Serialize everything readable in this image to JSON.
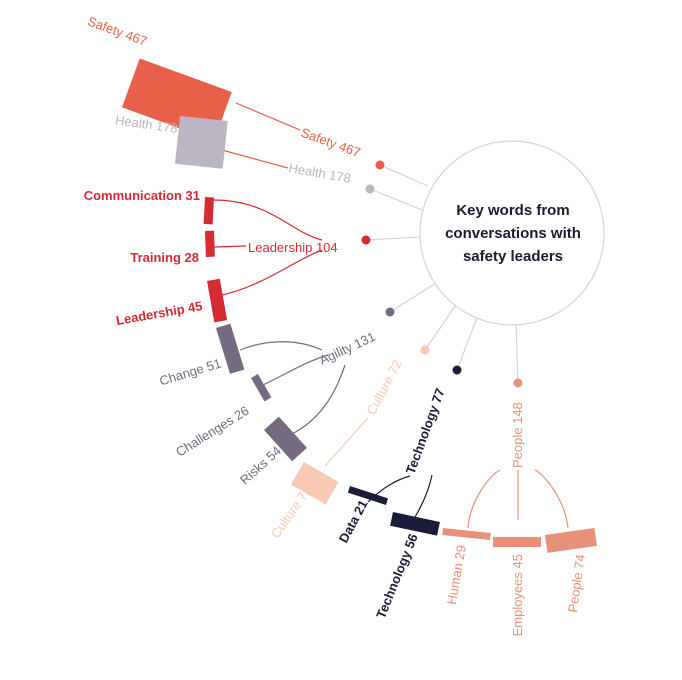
{
  "center": {
    "lines": [
      "Key words from",
      "conversations with",
      "safety leaders"
    ]
  },
  "colors": {
    "safety": "#e8604a",
    "health": "#bcb6c4",
    "leadership": "#d52b32",
    "agility": "#756a80",
    "culture": "#f8c9b5",
    "technology": "#1b1b3a",
    "people": "#e8917a",
    "connector": "#d6d3d8"
  },
  "groups": [
    {
      "key": "safety",
      "label": "Safety 467",
      "color": "#e8604a"
    },
    {
      "key": "health",
      "label": "Health 178",
      "color": "#bcb6c4"
    },
    {
      "key": "leadership",
      "label": "Leadership 104",
      "color": "#d52b32"
    },
    {
      "key": "agility",
      "label": "Agility 131",
      "color": "#756a80"
    },
    {
      "key": "culture",
      "label": "Culture 72",
      "color": "#f8c9b5"
    },
    {
      "key": "technology",
      "label": "Technology 77",
      "color": "#1b1b3a"
    },
    {
      "key": "people",
      "label": "People 148",
      "color": "#e8917a"
    }
  ],
  "words": [
    {
      "group": "safety",
      "word": "Safety",
      "value": "467",
      "label": "Safety 467"
    },
    {
      "group": "health",
      "word": "Health",
      "value": "178",
      "label": "Health 178"
    },
    {
      "group": "leadership",
      "word": "Communication",
      "value": "31",
      "label": "Communication  31"
    },
    {
      "group": "leadership",
      "word": "Training",
      "value": "28",
      "label": "Training  28"
    },
    {
      "group": "leadership",
      "word": "Leadership",
      "value": "45",
      "label": "Leadership  45"
    },
    {
      "group": "agility",
      "word": "Change",
      "value": "51",
      "label": "Change  51"
    },
    {
      "group": "agility",
      "word": "Challenges",
      "value": "26",
      "label": "Challenges  26"
    },
    {
      "group": "agility",
      "word": "Risks",
      "value": "54",
      "label": "Risks  54"
    },
    {
      "group": "culture",
      "word": "Culture",
      "value": "72",
      "label": "Culture 72"
    },
    {
      "group": "technology",
      "word": "Data",
      "value": "21",
      "label": "Data 21"
    },
    {
      "group": "technology",
      "word": "Technology",
      "value": "56",
      "label": "Technology  56"
    },
    {
      "group": "people",
      "word": "Human",
      "value": "29",
      "label": "Human  29"
    },
    {
      "group": "people",
      "word": "Employees",
      "value": "45",
      "label": "Employees  45"
    },
    {
      "group": "people",
      "word": "People",
      "value": "74",
      "label": "People  74"
    }
  ]
}
